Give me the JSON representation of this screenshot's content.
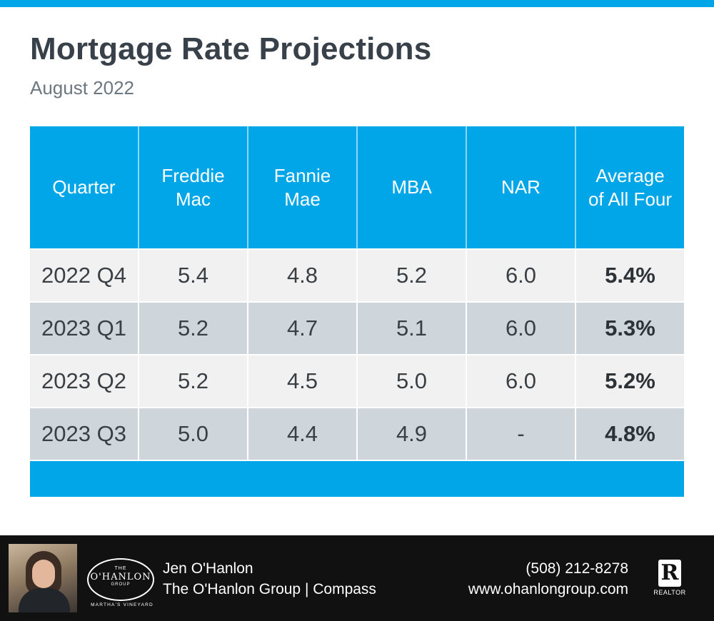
{
  "header": {
    "title": "Mortgage Rate Projections",
    "subtitle": "August 2022",
    "accent_color": "#00a6e8"
  },
  "table": {
    "columns": [
      {
        "line1": "Quarter",
        "line2": ""
      },
      {
        "line1": "Freddie",
        "line2": "Mac"
      },
      {
        "line1": "Fannie",
        "line2": "Mae"
      },
      {
        "line1": "MBA",
        "line2": ""
      },
      {
        "line1": "NAR",
        "line2": ""
      },
      {
        "line1": "Average",
        "line2": "of All Four"
      }
    ],
    "rows": [
      {
        "quarter": "2022 Q4",
        "freddie_mac": "5.4",
        "fannie_mae": "4.8",
        "mba": "5.2",
        "nar": "6.0",
        "average": "5.4%"
      },
      {
        "quarter": "2023 Q1",
        "freddie_mac": "5.2",
        "fannie_mae": "4.7",
        "mba": "5.1",
        "nar": "6.0",
        "average": "5.3%"
      },
      {
        "quarter": "2023 Q2",
        "freddie_mac": "5.2",
        "fannie_mae": "4.5",
        "mba": "5.0",
        "nar": "6.0",
        "average": "5.2%"
      },
      {
        "quarter": "2023 Q3",
        "freddie_mac": "5.0",
        "fannie_mae": "4.4",
        "mba": "4.9",
        "nar": "-",
        "average": "4.8%"
      }
    ],
    "row_colors": {
      "light": "#f1f1f1",
      "dark": "#cfd6db"
    }
  },
  "footer": {
    "agent_name": "Jen O'Hanlon",
    "company": "The O'Hanlon Group | Compass",
    "phone": "(508) 212-8278",
    "website": "www.ohanlongroup.com",
    "logo": {
      "line1": "THE",
      "line2": "O'HANLON",
      "line3": "GROUP",
      "arc_text": "MARTHA'S VINEYARD"
    },
    "realtor_mark": "R",
    "realtor_label": "REALTOR",
    "background_color": "#111111"
  }
}
